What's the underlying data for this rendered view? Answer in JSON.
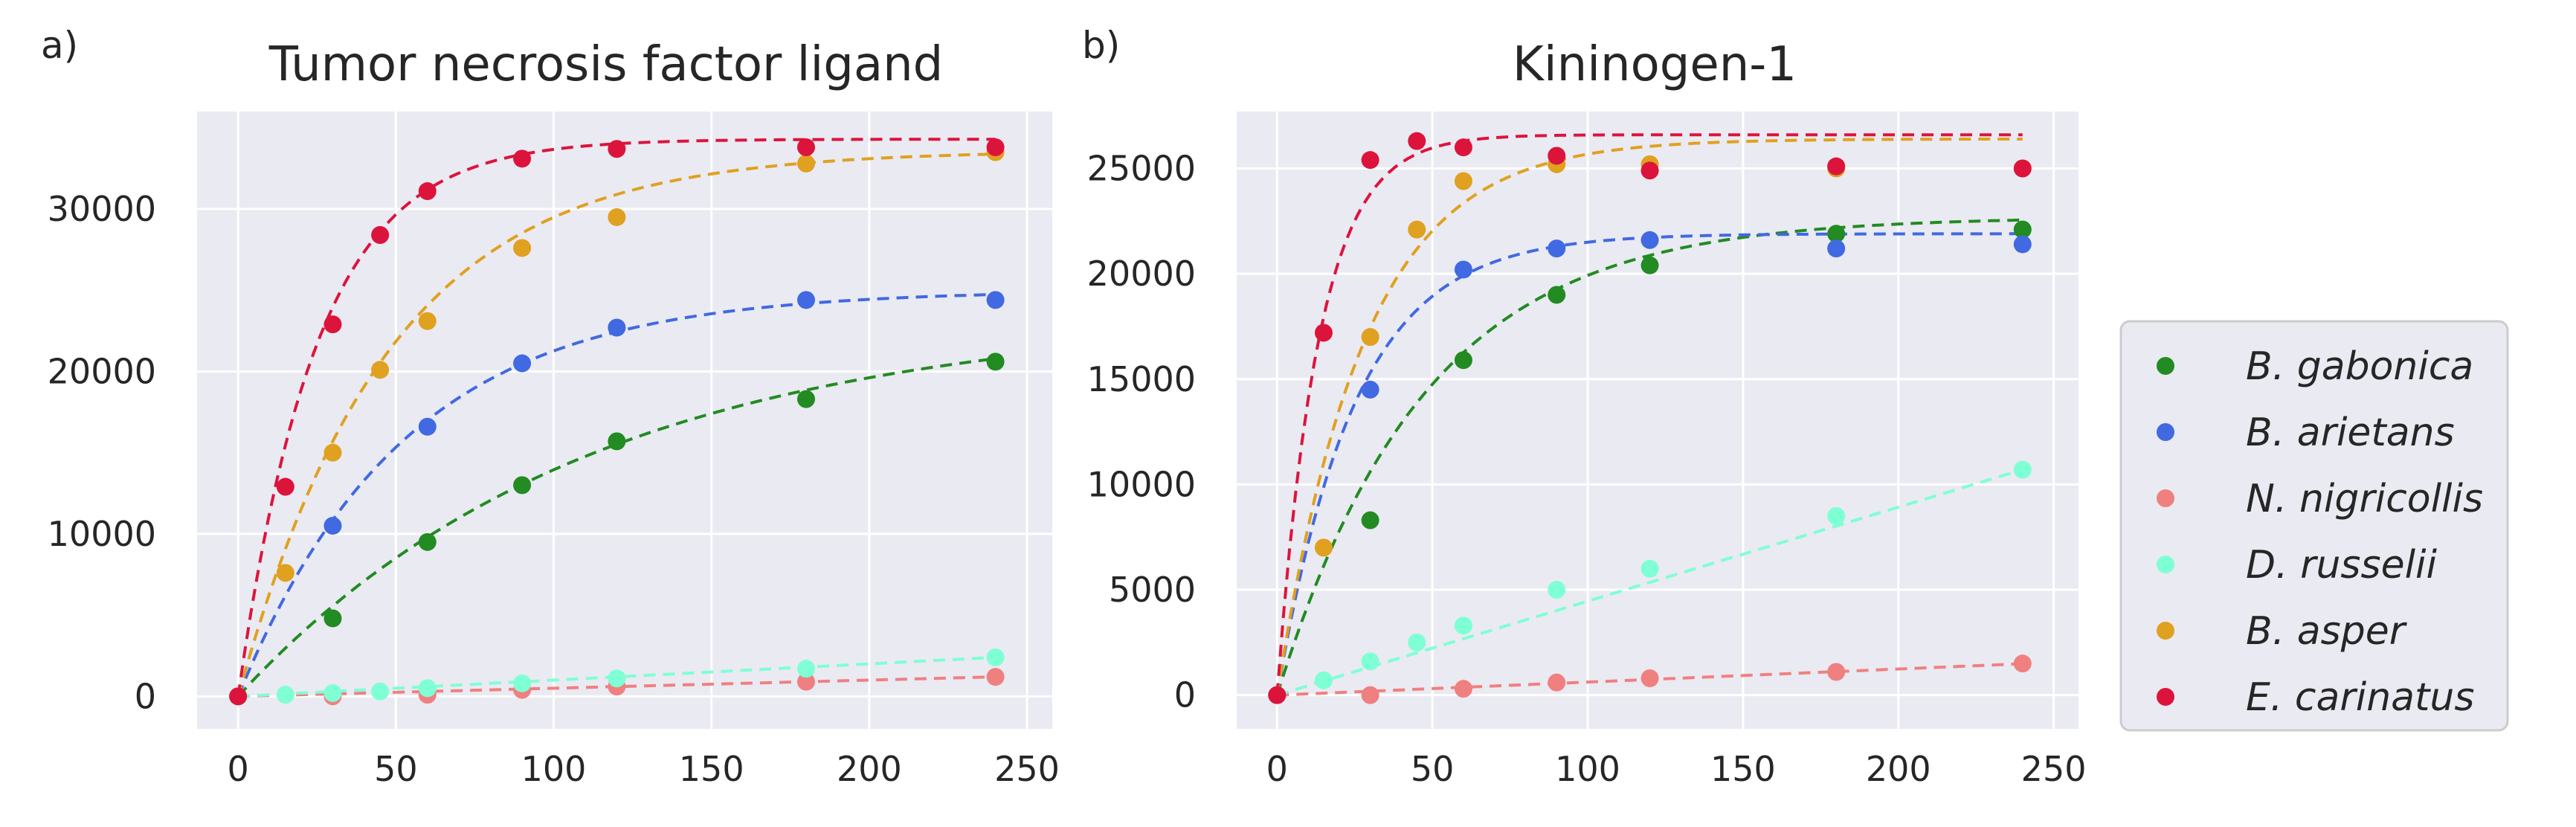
{
  "colors": {
    "B. gabonica": "#228b22",
    "B. arietans": "#4169e1",
    "N. nigricollis": "#f08080",
    "D. russelii": "#7fffd4",
    "B. asper": "#e0a020",
    "E. carinatus": "#dc143c"
  },
  "legend": {
    "entries": [
      {
        "label": "B. gabonica",
        "series": "B. gabonica"
      },
      {
        "label": "B. arietans",
        "series": "B. arietans"
      },
      {
        "label": "N. nigricollis",
        "series": "N. nigricollis"
      },
      {
        "label": "D. russelii",
        "series": "D. russelii"
      },
      {
        "label": "B. asper",
        "series": "B. asper"
      },
      {
        "label": "E. carinatus",
        "series": "E. carinatus"
      }
    ],
    "placement": "right"
  },
  "chart_data": [
    {
      "panel": "a)",
      "type": "scatter",
      "title": "Tumor necrosis factor ligand",
      "xlim": [
        -13,
        258
      ],
      "ylim": [
        -2000,
        36000
      ],
      "xticks": [
        0,
        50,
        100,
        150,
        200,
        250
      ],
      "yticks": [
        0,
        10000,
        20000,
        30000
      ],
      "ytick_labels": [
        "0",
        "10000",
        "20000",
        "30000"
      ],
      "grid": true,
      "series": [
        {
          "name": "B. gabonica",
          "points": [
            [
              0,
              0
            ],
            [
              30,
              4800
            ],
            [
              60,
              9500
            ],
            [
              90,
              13000
            ],
            [
              120,
              15700
            ],
            [
              180,
              18300
            ],
            [
              240,
              20600
            ]
          ],
          "fit_max": 23500,
          "fit_k": 0.009
        },
        {
          "name": "B. arietans",
          "points": [
            [
              0,
              0
            ],
            [
              30,
              10500
            ],
            [
              60,
              16600
            ],
            [
              90,
              20500
            ],
            [
              120,
              22700
            ],
            [
              180,
              24400
            ],
            [
              240,
              24400
            ]
          ],
          "fit_max": 25000,
          "fit_k": 0.019
        },
        {
          "name": "N. nigricollis",
          "points": [
            [
              0,
              0
            ],
            [
              30,
              0
            ],
            [
              60,
              100
            ],
            [
              90,
              400
            ],
            [
              120,
              600
            ],
            [
              180,
              900
            ],
            [
              240,
              1200
            ]
          ],
          "fit_max": 0,
          "fit_k": 0,
          "fit_slope": 5
        },
        {
          "name": "D. russelii",
          "points": [
            [
              0,
              0
            ],
            [
              15,
              100
            ],
            [
              30,
              200
            ],
            [
              45,
              300
            ],
            [
              60,
              500
            ],
            [
              90,
              800
            ],
            [
              120,
              1100
            ],
            [
              180,
              1700
            ],
            [
              240,
              2400
            ]
          ],
          "fit_max": 0,
          "fit_k": 0,
          "fit_slope": 10
        },
        {
          "name": "B. asper",
          "points": [
            [
              0,
              0
            ],
            [
              15,
              7600
            ],
            [
              30,
              15000
            ],
            [
              45,
              20100
            ],
            [
              60,
              23100
            ],
            [
              90,
              27600
            ],
            [
              120,
              29500
            ],
            [
              180,
              32800
            ],
            [
              240,
              33500
            ]
          ],
          "fit_max": 33600,
          "fit_k": 0.021
        },
        {
          "name": "E. carinatus",
          "points": [
            [
              0,
              0
            ],
            [
              15,
              12900
            ],
            [
              30,
              22900
            ],
            [
              45,
              28400
            ],
            [
              60,
              31100
            ],
            [
              90,
              33100
            ],
            [
              120,
              33700
            ],
            [
              180,
              33800
            ],
            [
              240,
              33800
            ]
          ],
          "fit_max": 34300,
          "fit_k": 0.04
        }
      ]
    },
    {
      "panel": "b)",
      "type": "scatter",
      "title": "Kininogen-1",
      "xlim": [
        -13,
        258
      ],
      "ylim": [
        -1600,
        27700
      ],
      "xticks": [
        0,
        50,
        100,
        150,
        200,
        250
      ],
      "yticks": [
        0,
        5000,
        10000,
        15000,
        20000,
        25000
      ],
      "ytick_labels": [
        "0",
        "5000",
        "10000",
        "15000",
        "20000",
        "25000"
      ],
      "grid": true,
      "series": [
        {
          "name": "B. gabonica",
          "points": [
            [
              0,
              0
            ],
            [
              30,
              8300
            ],
            [
              60,
              15900
            ],
            [
              90,
              19000
            ],
            [
              120,
              20400
            ],
            [
              180,
              21900
            ],
            [
              240,
              22100
            ]
          ],
          "fit_max": 22700,
          "fit_k": 0.021
        },
        {
          "name": "B. arietans",
          "points": [
            [
              0,
              0
            ],
            [
              30,
              14500
            ],
            [
              60,
              20200
            ],
            [
              90,
              21200
            ],
            [
              120,
              21600
            ],
            [
              180,
              21200
            ],
            [
              240,
              21400
            ]
          ],
          "fit_max": 21900,
          "fit_k": 0.04
        },
        {
          "name": "N. nigricollis",
          "points": [
            [
              0,
              0
            ],
            [
              30,
              0
            ],
            [
              60,
              300
            ],
            [
              90,
              600
            ],
            [
              120,
              800
            ],
            [
              180,
              1100
            ],
            [
              240,
              1500
            ]
          ],
          "fit_max": 0,
          "fit_k": 0,
          "fit_slope": 6.2
        },
        {
          "name": "D. russelii",
          "points": [
            [
              0,
              0
            ],
            [
              15,
              700
            ],
            [
              30,
              1600
            ],
            [
              45,
              2500
            ],
            [
              60,
              3300
            ],
            [
              90,
              5000
            ],
            [
              120,
              6000
            ],
            [
              180,
              8500
            ],
            [
              240,
              10700
            ]
          ],
          "fit_max": 0,
          "fit_k": 0,
          "fit_slope": 44.6
        },
        {
          "name": "B. asper",
          "points": [
            [
              0,
              0
            ],
            [
              15,
              7000
            ],
            [
              30,
              17000
            ],
            [
              45,
              22100
            ],
            [
              60,
              24400
            ],
            [
              90,
              25200
            ],
            [
              120,
              25200
            ],
            [
              180,
              25000
            ],
            [
              240,
              25000
            ]
          ],
          "fit_max": 26400,
          "fit_k": 0.036
        },
        {
          "name": "E. carinatus",
          "points": [
            [
              0,
              0
            ],
            [
              15,
              17200
            ],
            [
              30,
              25400
            ],
            [
              45,
              26300
            ],
            [
              60,
              26000
            ],
            [
              90,
              25600
            ],
            [
              120,
              24900
            ],
            [
              180,
              25100
            ],
            [
              240,
              25000
            ]
          ],
          "fit_max": 26600,
          "fit_k": 0.075
        }
      ]
    }
  ]
}
